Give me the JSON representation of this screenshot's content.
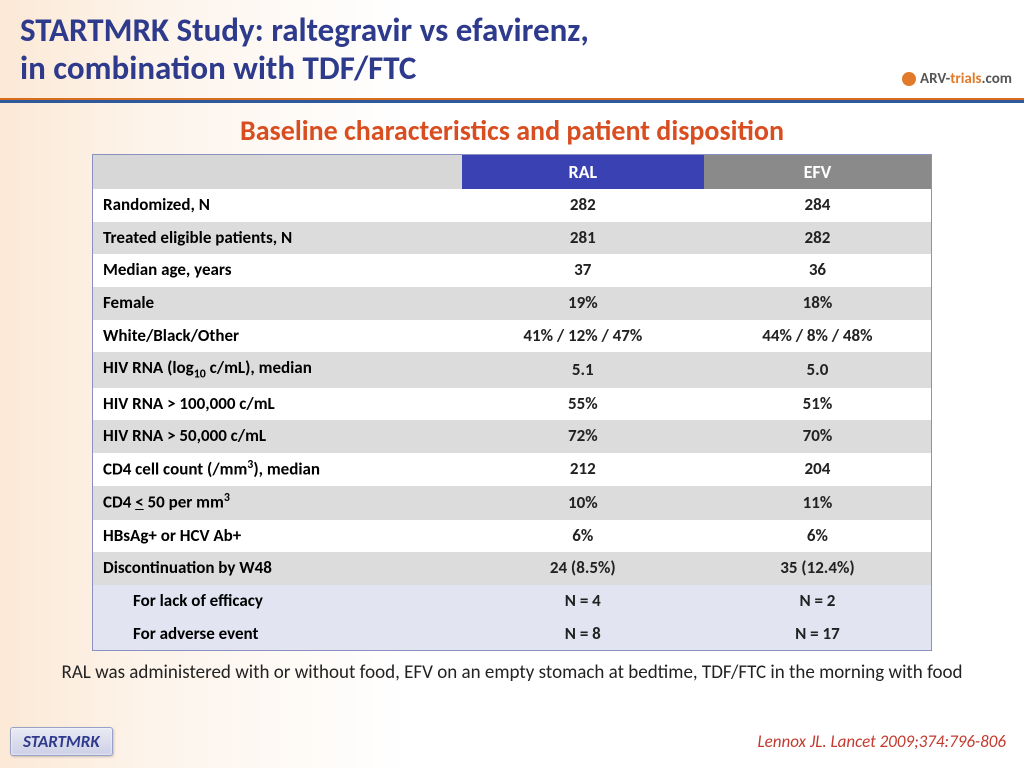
{
  "title": {
    "line1": "STARTMRK Study: raltegravir vs efavirenz,",
    "line2": "in combination with TDF/FTC"
  },
  "logo": {
    "text1": "ARV-",
    "text2": "trials",
    "text3": ".com"
  },
  "subtitle": "Baseline characteristics and patient disposition",
  "table": {
    "type": "table",
    "columns": [
      "",
      "RAL",
      "EFV"
    ],
    "header_colors": [
      "#d7d7d7",
      "#3a41b3",
      "#8a8a8a"
    ],
    "col_widths": [
      "44%",
      "28%",
      "28%"
    ],
    "row_stripe_colors": {
      "white": "#ffffff",
      "grey": "#dcdcdc",
      "sub": "#e2e4f2"
    },
    "border_color": "#8a90c0",
    "font_size": 17,
    "rows": [
      {
        "label": "Randomized, N",
        "ral": "282",
        "efv": "284",
        "stripe": "white"
      },
      {
        "label": "Treated eligible patients, N",
        "ral": "281",
        "efv": "282",
        "stripe": "grey"
      },
      {
        "label": "Median age, years",
        "ral": "37",
        "efv": "36",
        "stripe": "white"
      },
      {
        "label": "Female",
        "ral": "19%",
        "efv": "18%",
        "stripe": "grey"
      },
      {
        "label": "White/Black/Other",
        "ral": "41% / 12% / 47%",
        "efv": "44% / 8% / 48%",
        "stripe": "white"
      },
      {
        "label_html": "HIV RNA (log<sub>10</sub> c/mL), median",
        "ral": "5.1",
        "efv": "5.0",
        "stripe": "grey"
      },
      {
        "label": "HIV RNA > 100,000 c/mL",
        "ral": "55%",
        "efv": "51%",
        "stripe": "white"
      },
      {
        "label": "HIV RNA > 50,000 c/mL",
        "ral": "72%",
        "efv": "70%",
        "stripe": "grey"
      },
      {
        "label_html": "CD4 cell count (/mm<sup>3</sup>), median",
        "ral": "212",
        "efv": "204",
        "stripe": "white"
      },
      {
        "label_html": "CD4 <span class=\"ule\">&lt;</span> 50 per mm<sup>3</sup>",
        "ral": "10%",
        "efv": "11%",
        "stripe": "grey"
      },
      {
        "label": "HBsAg+ or HCV Ab+",
        "ral": "6%",
        "efv": "6%",
        "stripe": "white"
      },
      {
        "label": "Discontinuation by W48",
        "ral": "24 (8.5%)",
        "efv": "35 (12.4%)",
        "stripe": "grey"
      },
      {
        "label": "For lack of efficacy",
        "ral": "N = 4",
        "efv": "N = 2",
        "stripe": "sub"
      },
      {
        "label": "For adverse event",
        "ral": "N = 8",
        "efv": "N = 17",
        "stripe": "sub"
      }
    ]
  },
  "footnote": "RAL was administered with or without food, EFV on an empty stomach at bedtime, TDF/FTC in the morning with food",
  "citation": "Lennox JL. Lancet 2009;374:796-806",
  "badge": "STARTMRK",
  "colors": {
    "title": "#2e3a8c",
    "subtitle": "#d94e20",
    "rule_top": "#d96d1f",
    "rule_bottom": "#2e5a9c",
    "citation": "#c23a2e"
  }
}
